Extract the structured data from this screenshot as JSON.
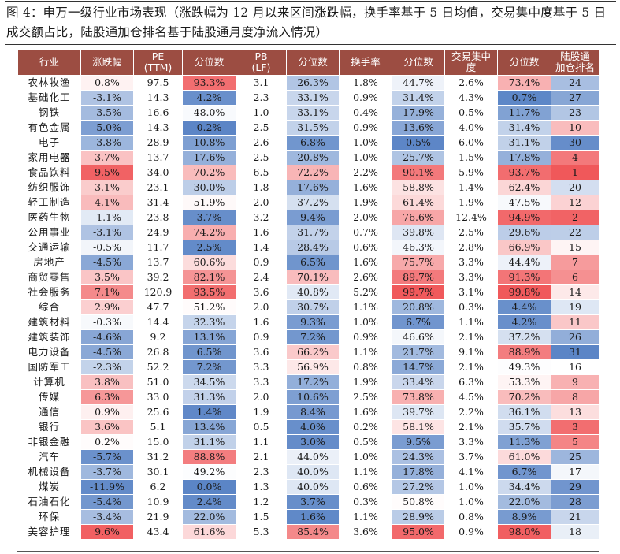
{
  "figure": {
    "caption": "图 4：申万一级行业市场表现（涨跌幅为 12 月以来区间涨跌幅，换手率基于 5 日均值，交易集中度基于 5 日成交额占比，陆股通加仓排名基于陆股通月度净流入情况）"
  },
  "table": {
    "headers": [
      "行业",
      "涨跌幅",
      "PE\n(TTM)",
      "分位数",
      "PB\n(LF)",
      "分位数",
      "换手率",
      "分位数",
      "交易集中\n度",
      "分位数",
      "陆股通\n加仓排名"
    ],
    "color_scale": {
      "high": "#f0585a",
      "mid": "#ffffff",
      "low": "#5b85c6"
    },
    "rows": [
      {
        "industry": "农林牧渔",
        "chg": "0.8%",
        "pe": "97.5",
        "pe_pct": "93.3%",
        "pb": "3.1",
        "pb_pct": "26.3%",
        "turnover": "1.8%",
        "turnover_pct": "44.7%",
        "conc": "2.6%",
        "conc_pct": "73.4%",
        "rank": "24"
      },
      {
        "industry": "基础化工",
        "chg": "-3.1%",
        "pe": "14.3",
        "pe_pct": "4.2%",
        "pb": "2.3",
        "pb_pct": "33.1%",
        "turnover": "0.9%",
        "turnover_pct": "31.4%",
        "conc": "4.3%",
        "conc_pct": "0.7%",
        "rank": "27"
      },
      {
        "industry": "钢铁",
        "chg": "-3.5%",
        "pe": "16.6",
        "pe_pct": "48.0%",
        "pb": "1.0",
        "pb_pct": "33.1%",
        "turnover": "0.4%",
        "turnover_pct": "17.9%",
        "conc": "0.5%",
        "conc_pct": "11.7%",
        "rank": "23"
      },
      {
        "industry": "有色金属",
        "chg": "-5.0%",
        "pe": "14.3",
        "pe_pct": "0.2%",
        "pb": "2.5",
        "pb_pct": "31.5%",
        "turnover": "0.9%",
        "turnover_pct": "13.6%",
        "conc": "4.0%",
        "conc_pct": "31.4%",
        "rank": "10"
      },
      {
        "industry": "电子",
        "chg": "-3.8%",
        "pe": "28.9",
        "pe_pct": "10.8%",
        "pb": "2.6",
        "pb_pct": "6.8%",
        "turnover": "1.0%",
        "turnover_pct": "0.5%",
        "conc": "6.0%",
        "conc_pct": "31.1%",
        "rank": "30"
      },
      {
        "industry": "家用电器",
        "chg": "3.7%",
        "pe": "13.7",
        "pe_pct": "17.6%",
        "pb": "2.5",
        "pb_pct": "20.8%",
        "turnover": "1.0%",
        "turnover_pct": "25.7%",
        "conc": "1.5%",
        "conc_pct": "17.8%",
        "rank": "4"
      },
      {
        "industry": "食品饮料",
        "chg": "9.5%",
        "pe": "34.0",
        "pe_pct": "70.2%",
        "pb": "6.5",
        "pb_pct": "72.2%",
        "turnover": "2.2%",
        "turnover_pct": "90.1%",
        "conc": "5.9%",
        "conc_pct": "93.7%",
        "rank": "1"
      },
      {
        "industry": "纺织服饰",
        "chg": "3.1%",
        "pe": "23.1",
        "pe_pct": "30.0%",
        "pb": "1.8",
        "pb_pct": "17.6%",
        "turnover": "1.6%",
        "turnover_pct": "58.8%",
        "conc": "1.4%",
        "conc_pct": "62.4%",
        "rank": "20"
      },
      {
        "industry": "轻工制造",
        "chg": "4.1%",
        "pe": "31.4",
        "pe_pct": "51.9%",
        "pb": "2.0",
        "pb_pct": "37.2%",
        "turnover": "1.9%",
        "turnover_pct": "61.4%",
        "conc": "1.9%",
        "conc_pct": "47.5%",
        "rank": "12"
      },
      {
        "industry": "医药生物",
        "chg": "-1.1%",
        "pe": "23.8",
        "pe_pct": "3.7%",
        "pb": "3.2",
        "pb_pct": "9.4%",
        "turnover": "2.0%",
        "turnover_pct": "76.6%",
        "conc": "12.4%",
        "conc_pct": "94.9%",
        "rank": "2"
      },
      {
        "industry": "公用事业",
        "chg": "-3.1%",
        "pe": "24.9",
        "pe_pct": "74.2%",
        "pb": "1.6",
        "pb_pct": "31.7%",
        "turnover": "0.7%",
        "turnover_pct": "39.8%",
        "conc": "2.5%",
        "conc_pct": "29.6%",
        "rank": "22"
      },
      {
        "industry": "交通运输",
        "chg": "-0.5%",
        "pe": "11.7",
        "pe_pct": "2.5%",
        "pb": "1.4",
        "pb_pct": "28.4%",
        "turnover": "0.6%",
        "turnover_pct": "46.3%",
        "conc": "2.8%",
        "conc_pct": "66.9%",
        "rank": "15"
      },
      {
        "industry": "房地产",
        "chg": "-4.5%",
        "pe": "13.7",
        "pe_pct": "60.6%",
        "pb": "0.9",
        "pb_pct": "6.5%",
        "turnover": "1.6%",
        "turnover_pct": "75.7%",
        "conc": "3.3%",
        "conc_pct": "44.4%",
        "rank": "7"
      },
      {
        "industry": "商贸零售",
        "chg": "3.5%",
        "pe": "39.2",
        "pe_pct": "82.1%",
        "pb": "2.4",
        "pb_pct": "70.1%",
        "turnover": "2.6%",
        "turnover_pct": "89.7%",
        "conc": "3.3%",
        "conc_pct": "91.3%",
        "rank": "6"
      },
      {
        "industry": "社会服务",
        "chg": "7.1%",
        "pe": "120.9",
        "pe_pct": "93.5%",
        "pb": "3.6",
        "pb_pct": "40.8%",
        "turnover": "5.2%",
        "turnover_pct": "99.7%",
        "conc": "3.1%",
        "conc_pct": "99.8%",
        "rank": "14"
      },
      {
        "industry": "综合",
        "chg": "2.9%",
        "pe": "47.7",
        "pe_pct": "51.2%",
        "pb": "2.0",
        "pb_pct": "30.7%",
        "turnover": "1.1%",
        "turnover_pct": "20.8%",
        "conc": "0.3%",
        "conc_pct": "4.4%",
        "rank": "19"
      },
      {
        "industry": "建筑材料",
        "chg": "-0.3%",
        "pe": "14.4",
        "pe_pct": "32.3%",
        "pb": "1.6",
        "pb_pct": "9.3%",
        "turnover": "1.0%",
        "turnover_pct": "6.7%",
        "conc": "1.1%",
        "conc_pct": "4.2%",
        "rank": "11"
      },
      {
        "industry": "建筑装饰",
        "chg": "-4.6%",
        "pe": "9.2",
        "pe_pct": "13.1%",
        "pb": "0.9",
        "pb_pct": "7.2%",
        "turnover": "0.9%",
        "turnover_pct": "46.6%",
        "conc": "2.1%",
        "conc_pct": "37.2%",
        "rank": "26"
      },
      {
        "industry": "电力设备",
        "chg": "-4.5%",
        "pe": "26.8",
        "pe_pct": "6.5%",
        "pb": "3.6",
        "pb_pct": "66.2%",
        "turnover": "1.1%",
        "turnover_pct": "21.7%",
        "conc": "9.1%",
        "conc_pct": "88.9%",
        "rank": "31"
      },
      {
        "industry": "国防军工",
        "chg": "-2.3%",
        "pe": "52.2",
        "pe_pct": "7.2%",
        "pb": "3.3",
        "pb_pct": "56.9%",
        "turnover": "0.8%",
        "turnover_pct": "14.7%",
        "conc": "2.1%",
        "conc_pct": "49.3%",
        "rank": "16"
      },
      {
        "industry": "计算机",
        "chg": "3.8%",
        "pe": "51.0",
        "pe_pct": "34.5%",
        "pb": "3.3",
        "pb_pct": "17.2%",
        "turnover": "1.9%",
        "turnover_pct": "33.4%",
        "conc": "6.3%",
        "conc_pct": "53.3%",
        "rank": "9"
      },
      {
        "industry": "传媒",
        "chg": "6.3%",
        "pe": "33.0",
        "pe_pct": "31.3%",
        "pb": "2.0",
        "pb_pct": "10.6%",
        "turnover": "2.5%",
        "turnover_pct": "73.8%",
        "conc": "4.5%",
        "conc_pct": "70.2%",
        "rank": "8"
      },
      {
        "industry": "通信",
        "chg": "0.9%",
        "pe": "25.6",
        "pe_pct": "1.4%",
        "pb": "1.9",
        "pb_pct": "8.4%",
        "turnover": "1.6%",
        "turnover_pct": "39.7%",
        "conc": "2.2%",
        "conc_pct": "36.1%",
        "rank": "13"
      },
      {
        "industry": "银行",
        "chg": "3.6%",
        "pe": "5.1",
        "pe_pct": "13.4%",
        "pb": "0.5",
        "pb_pct": "4.0%",
        "turnover": "0.2%",
        "turnover_pct": "58.1%",
        "conc": "2.1%",
        "conc_pct": "35.7%",
        "rank": "3"
      },
      {
        "industry": "非银金融",
        "chg": "0.2%",
        "pe": "15.0",
        "pe_pct": "31.1%",
        "pb": "1.1",
        "pb_pct": "3.0%",
        "turnover": "0.5%",
        "turnover_pct": "9.5%",
        "conc": "3.3%",
        "conc_pct": "11.3%",
        "rank": "5"
      },
      {
        "industry": "汽车",
        "chg": "-5.7%",
        "pe": "31.2",
        "pe_pct": "88.8%",
        "pb": "2.1",
        "pb_pct": "44.0%",
        "turnover": "1.0%",
        "turnover_pct": "24.3%",
        "conc": "3.7%",
        "conc_pct": "61.0%",
        "rank": "25"
      },
      {
        "industry": "机械设备",
        "chg": "-3.7%",
        "pe": "30.1",
        "pe_pct": "49.2%",
        "pb": "2.3",
        "pb_pct": "40.0%",
        "turnover": "1.1%",
        "turnover_pct": "17.8%",
        "conc": "4.1%",
        "conc_pct": "6.7%",
        "rank": "17"
      },
      {
        "industry": "煤炭",
        "chg": "-11.9%",
        "pe": "6.2",
        "pe_pct": "0.0%",
        "pb": "1.3",
        "pb_pct": "40.0%",
        "turnover": "0.6%",
        "turnover_pct": "27.2%",
        "conc": "1.0%",
        "conc_pct": "34.4%",
        "rank": "29"
      },
      {
        "industry": "石油石化",
        "chg": "-5.4%",
        "pe": "10.9",
        "pe_pct": "2.4%",
        "pb": "1.2",
        "pb_pct": "3.7%",
        "turnover": "0.3%",
        "turnover_pct": "50.8%",
        "conc": "1.0%",
        "conc_pct": "22.0%",
        "rank": "28"
      },
      {
        "industry": "环保",
        "chg": "-3.4%",
        "pe": "21.9",
        "pe_pct": "22.0%",
        "pb": "1.5",
        "pb_pct": "1.6%",
        "turnover": "1.1%",
        "turnover_pct": "28.9%",
        "conc": "0.8%",
        "conc_pct": "8.9%",
        "rank": "21"
      },
      {
        "industry": "美容护理",
        "chg": "9.6%",
        "pe": "43.4",
        "pe_pct": "61.6%",
        "pb": "5.3",
        "pb_pct": "85.4%",
        "turnover": "3.6%",
        "turnover_pct": "95.0%",
        "conc": "0.9%",
        "conc_pct": "98.0%",
        "rank": "18"
      }
    ]
  }
}
